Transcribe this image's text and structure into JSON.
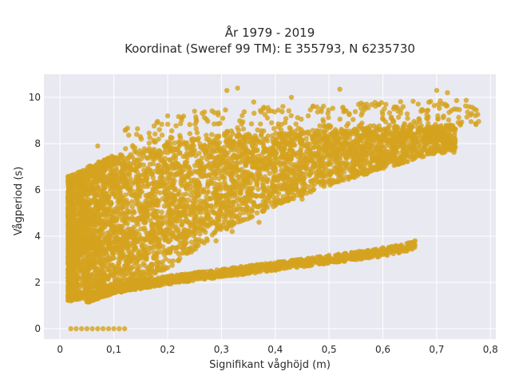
{
  "chart_data": {
    "type": "scatter",
    "title_line1": "År 1979 - 2019",
    "title_line2": "Koordinat (Sweref 99 TM): E 355793, N 6235730",
    "xlabel": "Signifikant våghöjd (m)",
    "ylabel": "Vågperiod (s)",
    "xlim": [
      -0.03,
      0.81
    ],
    "ylim": [
      -0.45,
      11.0
    ],
    "x_ticks": [
      0,
      0.1,
      0.2,
      0.3,
      0.4,
      0.5,
      0.6,
      0.7,
      0.8
    ],
    "x_tick_labels": [
      "0",
      "0,1",
      "0,2",
      "0,3",
      "0,4",
      "0,5",
      "0,6",
      "0,7",
      "0,8"
    ],
    "y_ticks": [
      0,
      2,
      4,
      6,
      8,
      10
    ],
    "y_tick_labels": [
      "0",
      "2",
      "4",
      "6",
      "8",
      "10"
    ],
    "grid": true,
    "point_color": "#D4A21E",
    "plot_background": "#E9E9F1",
    "dense_band_upper": [
      [
        0.02,
        6.6
      ],
      [
        0.05,
        7.0
      ],
      [
        0.1,
        7.5
      ],
      [
        0.2,
        8.0
      ],
      [
        0.3,
        8.4
      ],
      [
        0.4,
        8.5
      ],
      [
        0.5,
        8.6
      ],
      [
        0.6,
        8.7
      ],
      [
        0.7,
        8.8
      ]
    ],
    "dense_band_lower": [
      [
        0.02,
        1.2
      ],
      [
        0.05,
        1.3
      ],
      [
        0.1,
        1.5
      ],
      [
        0.2,
        2.6
      ],
      [
        0.3,
        4.2
      ],
      [
        0.4,
        5.3
      ],
      [
        0.5,
        6.2
      ],
      [
        0.6,
        6.9
      ],
      [
        0.7,
        7.6
      ]
    ],
    "lower_line": [
      [
        0.05,
        1.3
      ],
      [
        0.1,
        1.7
      ],
      [
        0.2,
        2.1
      ],
      [
        0.3,
        2.4
      ],
      [
        0.4,
        2.7
      ],
      [
        0.5,
        3.0
      ],
      [
        0.6,
        3.3
      ],
      [
        0.66,
        3.6
      ]
    ],
    "zero_points_x": [
      0.02,
      0.03,
      0.04,
      0.05,
      0.06,
      0.07,
      0.08,
      0.09,
      0.1,
      0.11,
      0.12
    ],
    "outliers": [
      [
        0.33,
        10.4
      ],
      [
        0.31,
        10.3
      ],
      [
        0.52,
        10.35
      ],
      [
        0.7,
        10.3
      ],
      [
        0.72,
        10.2
      ],
      [
        0.77,
        9.5
      ],
      [
        0.76,
        9.6
      ],
      [
        0.18,
        8.9
      ],
      [
        0.2,
        9.2
      ],
      [
        0.25,
        9.4
      ],
      [
        0.36,
        9.8
      ],
      [
        0.43,
        10.0
      ],
      [
        0.47,
        9.6
      ],
      [
        0.57,
        9.7
      ],
      [
        0.62,
        9.5
      ],
      [
        0.07,
        7.9
      ],
      [
        0.66,
        3.8
      ],
      [
        0.6,
        3.5
      ],
      [
        0.32,
        4.2
      ],
      [
        0.45,
        5.6
      ],
      [
        0.37,
        4.6
      ],
      [
        0.29,
        3.8
      ]
    ]
  }
}
